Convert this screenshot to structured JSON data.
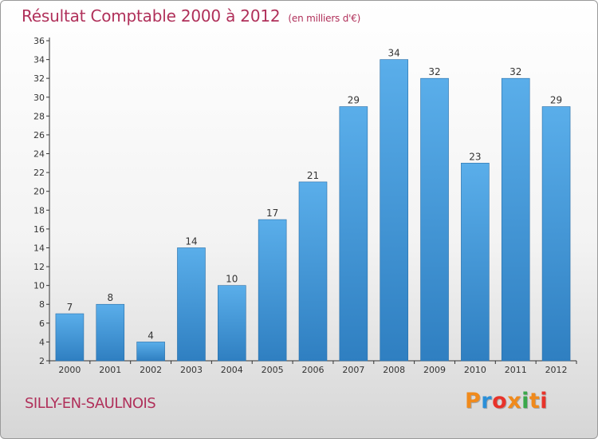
{
  "header": {
    "title": "Résultat Comptable 2000 à 2012",
    "unit": "(en milliers d'€)"
  },
  "footer": {
    "location": "SILLY-EN-SAULNOIS",
    "brand": "Proxiti"
  },
  "colors": {
    "bar_top": "#5aaeea",
    "bar_bottom": "#2f7fc1",
    "title": "#b0305a",
    "logo": [
      "#f08a1c",
      "#2b8fd8",
      "#e8332a",
      "#f08a1c",
      "#3aa84a",
      "#f08a1c",
      "#e8332a"
    ]
  },
  "chart_data": {
    "type": "bar",
    "title": "Résultat Comptable 2000 à 2012",
    "subtitle": "(en milliers d'€)",
    "xlabel": "",
    "ylabel": "",
    "categories": [
      "2000",
      "2001",
      "2002",
      "2003",
      "2004",
      "2005",
      "2006",
      "2007",
      "2008",
      "2009",
      "2010",
      "2011",
      "2012"
    ],
    "values": [
      7,
      8,
      4,
      14,
      10,
      17,
      21,
      29,
      34,
      32,
      23,
      32,
      29
    ],
    "ylim": [
      2,
      36
    ],
    "yticks": [
      2,
      4,
      6,
      8,
      10,
      12,
      14,
      16,
      18,
      20,
      22,
      24,
      26,
      28,
      30,
      32,
      34,
      36
    ],
    "grid": false,
    "data_labels": true
  }
}
